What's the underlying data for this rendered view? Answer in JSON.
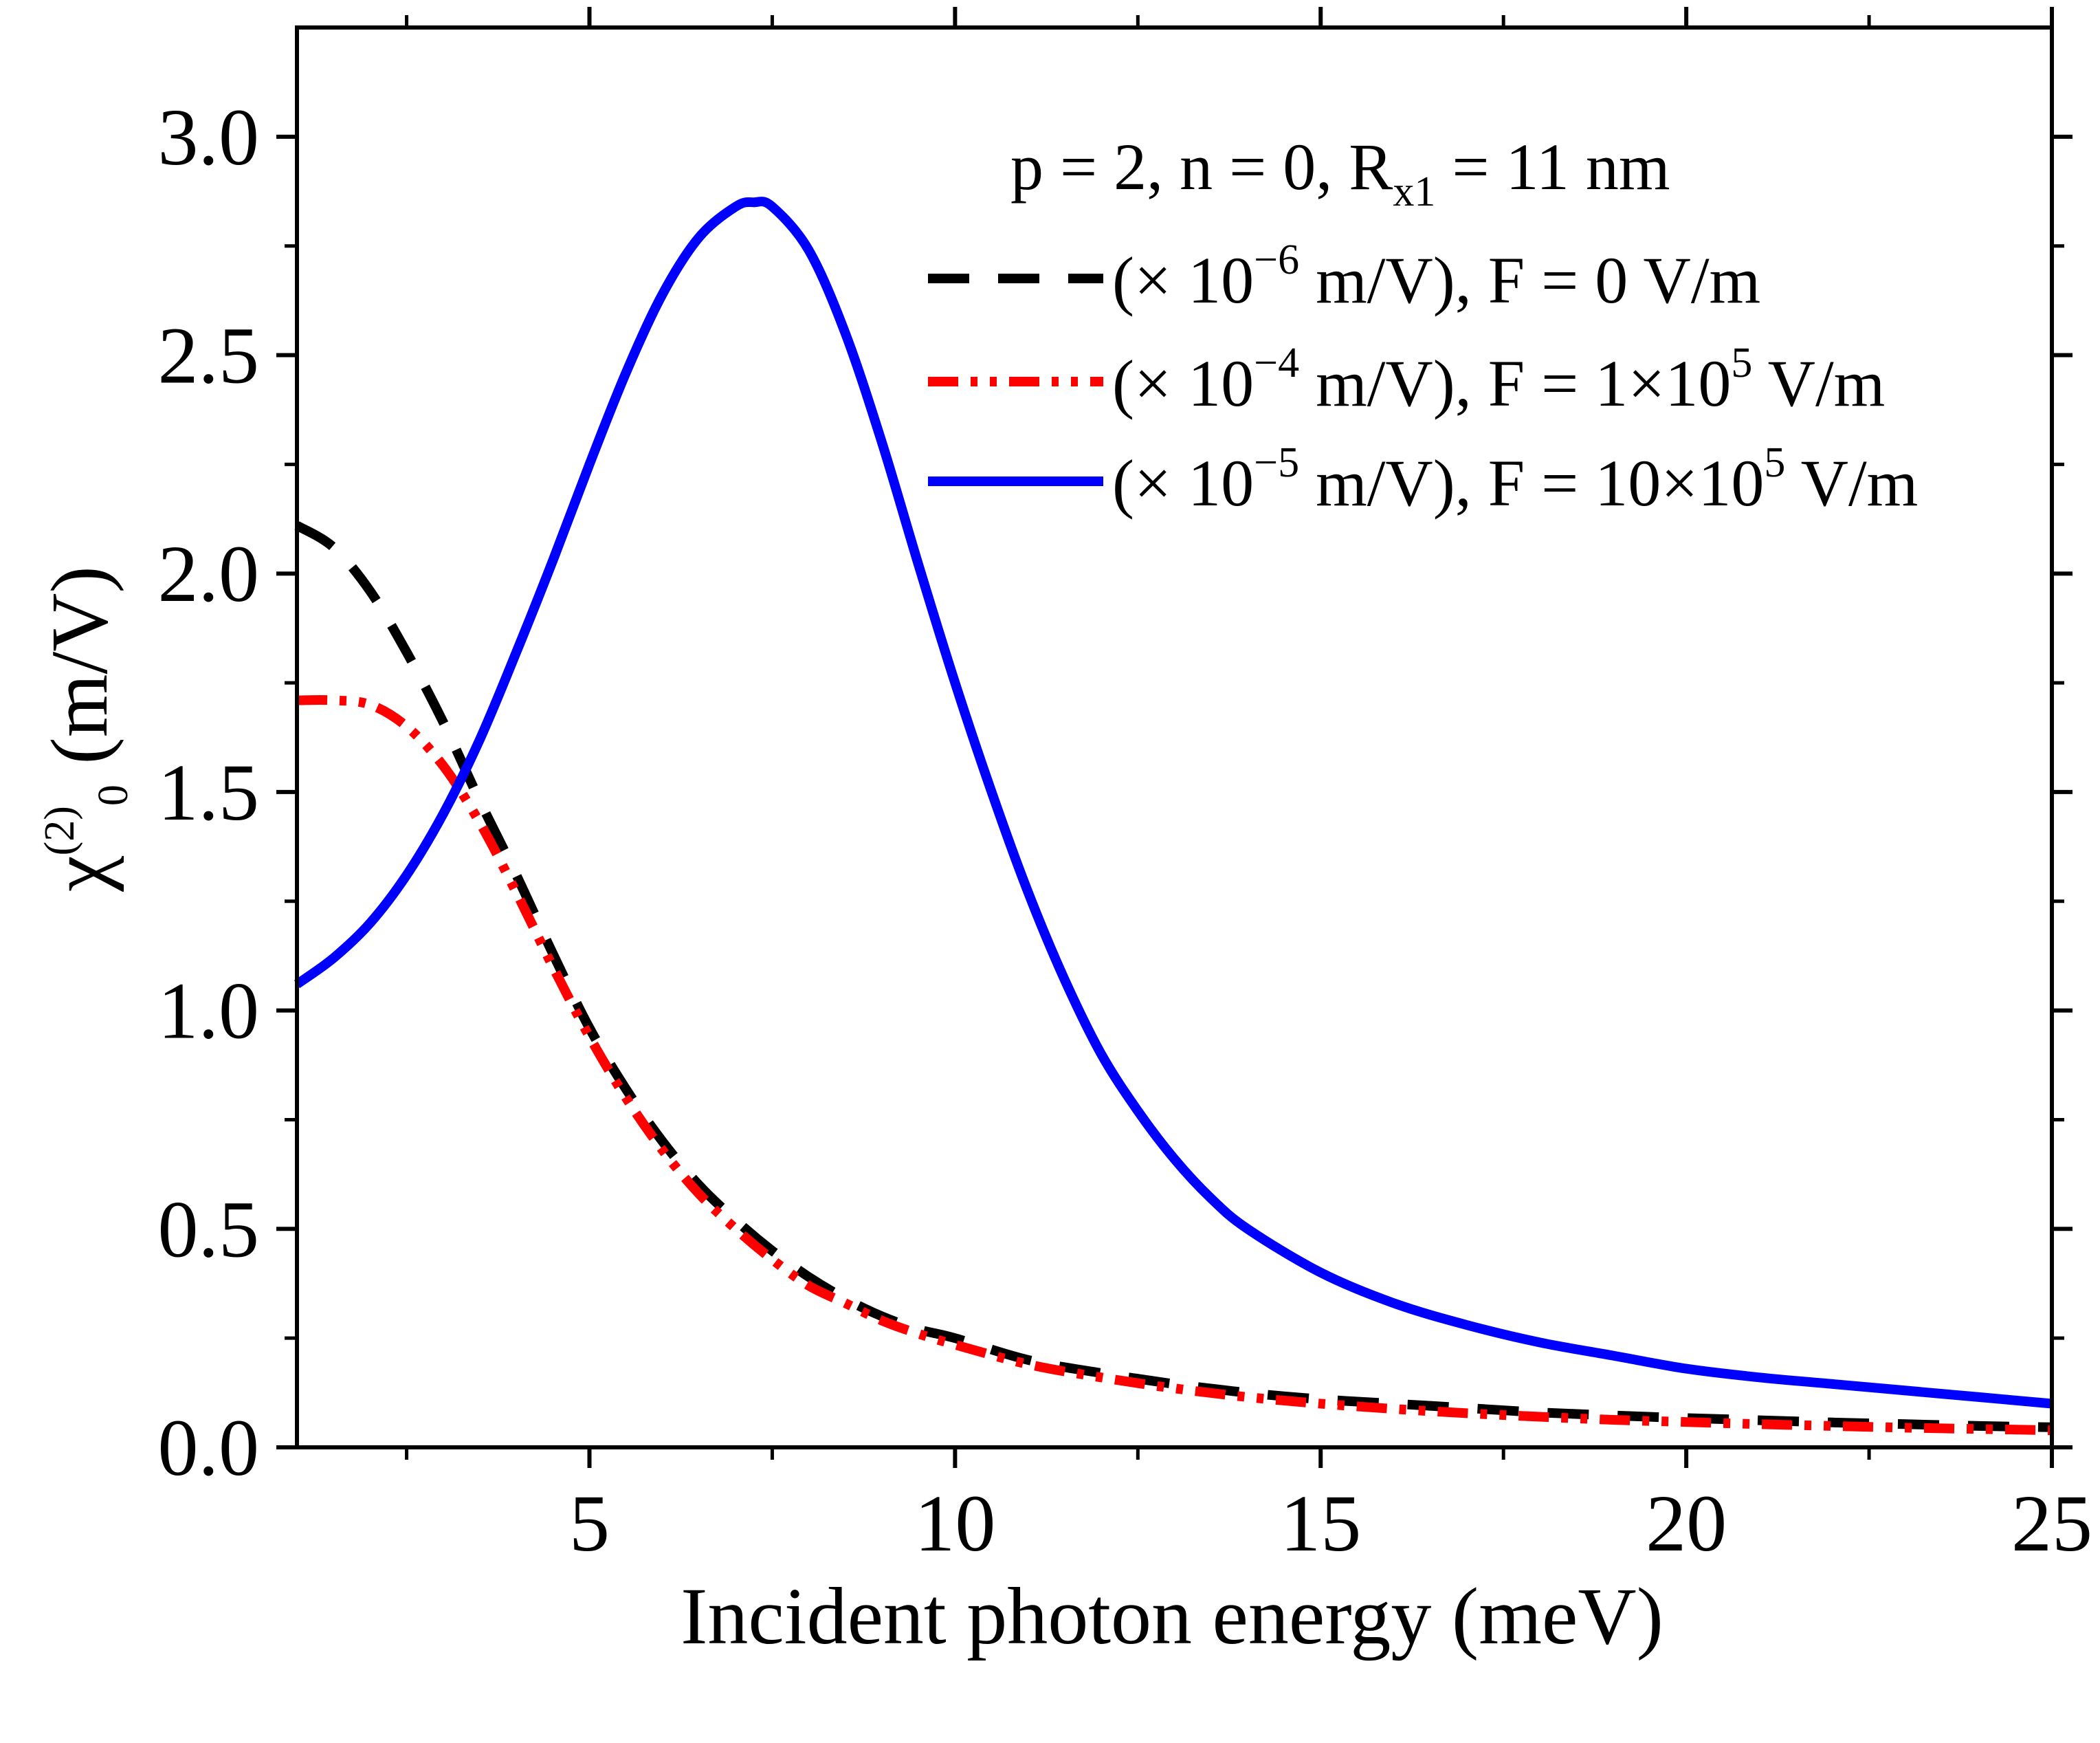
{
  "chart_data": {
    "type": "line",
    "title": "",
    "xlabel": "Incident photon energy (meV)",
    "ylabel": {
      "main": "χ",
      "superscript": "(2)",
      "subscript": "0",
      "unit": " (m/V)"
    },
    "xlim": [
      1,
      25
    ],
    "ylim": [
      0,
      3.25
    ],
    "x_ticks": [
      5,
      10,
      15,
      20,
      25
    ],
    "x_tick_labels": [
      "5",
      "10",
      "15",
      "20",
      "25"
    ],
    "x_minor_ticks": [
      2.5,
      7.5,
      12.5,
      17.5,
      22.5
    ],
    "y_ticks": [
      0,
      0.5,
      1.0,
      1.5,
      2.0,
      2.5,
      3.0
    ],
    "y_tick_labels": [
      "0.0",
      "0.5",
      "1.0",
      "1.5",
      "2.0",
      "2.5",
      "3.0"
    ],
    "y_minor_ticks": [
      0.25,
      0.75,
      1.25,
      1.75,
      2.25,
      2.75
    ],
    "grid": false,
    "legend_position": "top-right",
    "annotation": {
      "prefix": "p = 2, n = 0, R",
      "subscript": "x1",
      "suffix": " = 11 nm"
    },
    "series": [
      {
        "name": "black-dashed",
        "color": "#000000",
        "style": "dashed",
        "legend": {
          "prefix": "(× 10",
          "exp": "−6",
          "middle": " m/V), F = 0 V/m",
          "exp2": "",
          "suffix": ""
        },
        "x": [
          1,
          1.5,
          2,
          2.5,
          3,
          3.5,
          4,
          4.5,
          5,
          5.5,
          6,
          6.5,
          7,
          7.5,
          8,
          8.5,
          9,
          9.5,
          10,
          11,
          12,
          13,
          14,
          15,
          16,
          17,
          18,
          19,
          20,
          21,
          22,
          23,
          24,
          25
        ],
        "values": [
          2.11,
          2.06,
          1.96,
          1.82,
          1.66,
          1.48,
          1.31,
          1.13,
          0.96,
          0.82,
          0.7,
          0.6,
          0.52,
          0.45,
          0.39,
          0.34,
          0.3,
          0.27,
          0.25,
          0.2,
          0.17,
          0.145,
          0.125,
          0.11,
          0.1,
          0.09,
          0.08,
          0.073,
          0.067,
          0.062,
          0.057,
          0.053,
          0.049,
          0.046
        ]
      },
      {
        "name": "red-dash-dot-dot",
        "color": "#ff0000",
        "style": "dash-dot-dot",
        "legend": {
          "prefix": "(× 10",
          "exp": "−4",
          "middle": " m/V), F = 1×10",
          "exp2": "5",
          "suffix": " V/m"
        },
        "x": [
          1,
          1.5,
          2,
          2.5,
          3,
          3.5,
          4,
          4.5,
          5,
          5.5,
          6,
          6.5,
          7,
          7.5,
          8,
          8.5,
          9,
          9.5,
          10,
          11,
          12,
          13,
          14,
          15,
          16,
          17,
          18,
          19,
          20,
          21,
          22,
          23,
          24,
          25
        ],
        "values": [
          1.71,
          1.71,
          1.7,
          1.65,
          1.56,
          1.43,
          1.27,
          1.1,
          0.94,
          0.8,
          0.68,
          0.58,
          0.5,
          0.43,
          0.37,
          0.33,
          0.29,
          0.26,
          0.235,
          0.19,
          0.16,
          0.135,
          0.115,
          0.1,
          0.088,
          0.078,
          0.07,
          0.063,
          0.058,
          0.053,
          0.049,
          0.045,
          0.042,
          0.039
        ]
      },
      {
        "name": "blue-solid",
        "color": "#0000ff",
        "style": "solid",
        "legend": {
          "prefix": "(× 10",
          "exp": "−5",
          "middle": " m/V), F = 10×10",
          "exp2": "5",
          "suffix": " V/m"
        },
        "x": [
          1,
          1.5,
          2,
          2.5,
          3,
          3.5,
          4,
          4.5,
          5,
          5.5,
          6,
          6.5,
          7,
          7.25,
          7.5,
          8,
          8.5,
          9,
          9.5,
          10,
          10.5,
          11,
          11.5,
          12,
          12.5,
          13,
          13.5,
          14,
          15,
          16,
          17,
          18,
          19,
          20,
          21,
          22,
          23,
          24,
          25
        ],
        "values": [
          1.06,
          1.12,
          1.2,
          1.31,
          1.45,
          1.62,
          1.82,
          2.03,
          2.25,
          2.46,
          2.64,
          2.77,
          2.84,
          2.85,
          2.84,
          2.74,
          2.55,
          2.3,
          2.02,
          1.75,
          1.5,
          1.27,
          1.07,
          0.9,
          0.77,
          0.66,
          0.57,
          0.5,
          0.4,
          0.33,
          0.28,
          0.24,
          0.21,
          0.18,
          0.16,
          0.145,
          0.13,
          0.115,
          0.1
        ]
      }
    ]
  }
}
